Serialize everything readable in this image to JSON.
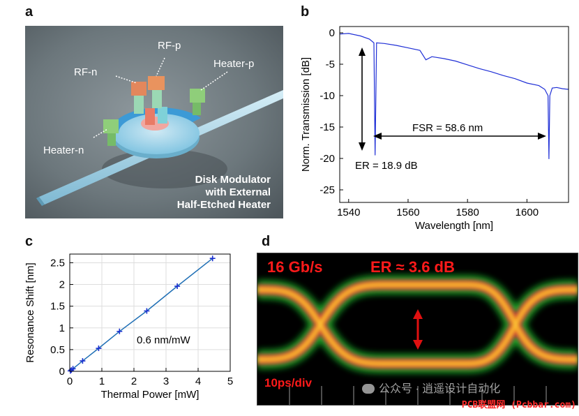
{
  "panels": {
    "a": "a",
    "b": "b",
    "c": "c",
    "d": "d"
  },
  "panel_a": {
    "labels": {
      "rf_p": "RF-p",
      "rf_n": "RF-n",
      "heater_p": "Heater-p",
      "heater_n": "Heater-n"
    },
    "caption": [
      "Disk Modulator",
      "with External",
      "Half-Etched Heater"
    ]
  },
  "chart_data": [
    {
      "id": "b",
      "type": "line",
      "xlabel": "Wavelength [nm]",
      "ylabel": "Norm. Transmission [dB]",
      "xlim": [
        1537,
        1614
      ],
      "ylim": [
        -27,
        1
      ],
      "xticks": [
        1540,
        1560,
        1580,
        1600
      ],
      "yticks": [
        0,
        -5,
        -10,
        -15,
        -20,
        -25
      ],
      "series_color": "#1f2fd6",
      "x": [
        1537,
        1540,
        1544,
        1547,
        1548.5,
        1548.9,
        1549.4,
        1552,
        1556,
        1560,
        1564,
        1566,
        1568,
        1572,
        1576,
        1580,
        1584,
        1588,
        1592,
        1596,
        1600,
        1604,
        1606,
        1607.1,
        1607.4,
        1607.7,
        1608.5,
        1610,
        1612,
        1614
      ],
      "y": [
        -0.2,
        -0.1,
        -0.5,
        -1.0,
        -1.6,
        -19.5,
        -1.6,
        -1.7,
        -2.0,
        -2.4,
        -2.8,
        -4.3,
        -3.8,
        -4.1,
        -4.5,
        -5.1,
        -5.7,
        -6.2,
        -6.8,
        -7.3,
        -8.0,
        -8.4,
        -9.0,
        -10.0,
        -20.1,
        -10.0,
        -8.8,
        -8.7,
        -8.9,
        -9.0
      ],
      "annotations": {
        "fsr": "FSR = 58.6 nm",
        "er": "ER = 18.9 dB"
      }
    },
    {
      "id": "c",
      "type": "line",
      "xlabel": "Thermal Power [mW]",
      "ylabel": "Resonance Shift [nm]",
      "xlim": [
        0,
        5
      ],
      "ylim": [
        0,
        2.7
      ],
      "xticks": [
        0,
        1,
        2,
        3,
        4,
        5
      ],
      "yticks": [
        0,
        0.5,
        1,
        1.5,
        2,
        2.5
      ],
      "ytick_labels": [
        "0",
        "0.5",
        "1",
        "1.5",
        "2",
        "2.5"
      ],
      "series_color": "#1f6fb5",
      "marker_color": "#1a2fd0",
      "x": [
        0.02,
        0.05,
        0.1,
        0.4,
        0.9,
        1.55,
        2.4,
        3.35,
        4.45
      ],
      "y": [
        0.01,
        0.03,
        0.06,
        0.24,
        0.53,
        0.92,
        1.39,
        1.96,
        2.6
      ],
      "annotation": "0.6 nm/mW"
    }
  ],
  "panel_d": {
    "rate": "16 Gb/s",
    "er": "ER ≈ 3.6 dB",
    "timebase": "10ps/div",
    "watermark": "公众号 · 逍遥设计自动化",
    "site": "PCB联盟网 (Pcbbar.com)",
    "colors": {
      "label": "#ff1a1a",
      "arrow": "#e01010",
      "site": "#ff2a2a"
    }
  }
}
